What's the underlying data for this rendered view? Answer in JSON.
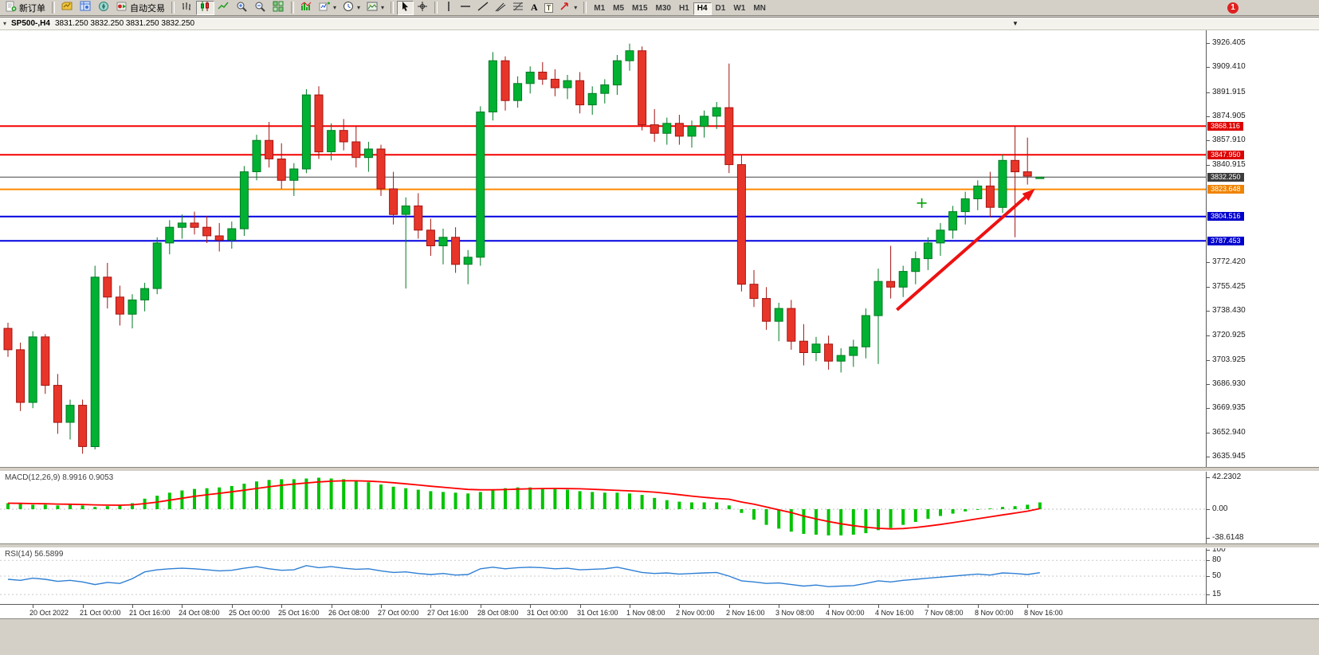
{
  "toolbar": {
    "new_order_label": "新订单",
    "auto_trading_label": "自动交易",
    "text_tool_label": "A",
    "label_tool_label": "T",
    "timeframes": [
      "M1",
      "M5",
      "M15",
      "M30",
      "H1",
      "H4",
      "D1",
      "W1",
      "MN"
    ],
    "active_timeframe": "H4",
    "notification_badge": "1",
    "icons": [
      "new-order",
      "chart-profiles",
      "market-watch",
      "navigator",
      "auto-trading",
      "bar-chart",
      "candlestick-chart",
      "line-chart",
      "zoom-in",
      "zoom-out",
      "tile-windows",
      "indicators",
      "add-indicator",
      "period",
      "template",
      "cursor",
      "crosshair",
      "vertical-line",
      "horizontal-line",
      "trendline",
      "equidistant-channel",
      "fibonacci",
      "text",
      "text-label",
      "arrows"
    ]
  },
  "chart_header": {
    "title": "SP500-,H4",
    "ohlc": "3831.250 3832.250 3831.250 3832.250"
  },
  "panels": {
    "macd_title": "MACD(12,26,9)",
    "macd_values": "8.9916 0.9053",
    "rsi_title": "RSI(14)",
    "rsi_value": "56.5899",
    "macd_axis": [
      {
        "text": "42.2302",
        "value": 42.2302
      },
      {
        "text": "0.00",
        "value": 0
      },
      {
        "text": "-38.6148",
        "value": -38.6148
      }
    ],
    "rsi_axis": [
      {
        "text": "100",
        "value": 100
      },
      {
        "text": "80",
        "value": 80
      },
      {
        "text": "50",
        "value": 50
      },
      {
        "text": "15",
        "value": 15
      }
    ]
  },
  "price_axis": {
    "labels": [
      3926.405,
      3909.41,
      3891.915,
      3874.905,
      3857.91,
      3840.915,
      3772.42,
      3755.425,
      3738.43,
      3720.925,
      3703.925,
      3686.93,
      3669.935,
      3652.94,
      3635.945
    ]
  },
  "chart_data": {
    "type": "candlestick",
    "symbol": "SP500-",
    "timeframe": "H4",
    "current_price": 3832.25,
    "colors": {
      "up": "#00b132",
      "down": "#e8352a",
      "macd_hist": "#00c400",
      "macd_signal": "#ff0000",
      "rsi_line": "#2e7fd4",
      "arrow": "#ee1111"
    },
    "x_labels": [
      "20 Oct 2022",
      "21 Oct 00:00",
      "21 Oct 16:00",
      "24 Oct 08:00",
      "25 Oct 00:00",
      "25 Oct 16:00",
      "26 Oct 08:00",
      "27 Oct 00:00",
      "27 Oct 16:00",
      "28 Oct 08:00",
      "31 Oct 00:00",
      "31 Oct 16:00",
      "1 Nov 08:00",
      "2 Nov 00:00",
      "2 Nov 16:00",
      "3 Nov 08:00",
      "4 Nov 00:00",
      "4 Nov 16:00",
      "7 Nov 08:00",
      "8 Nov 00:00",
      "8 Nov 16:00"
    ],
    "candles_ohlc": [
      [
        3726,
        3730,
        3706,
        3711
      ],
      [
        3711,
        3716,
        3668,
        3674
      ],
      [
        3674,
        3724,
        3670,
        3720
      ],
      [
        3720,
        3722,
        3680,
        3686
      ],
      [
        3686,
        3694,
        3652,
        3660
      ],
      [
        3660,
        3676,
        3648,
        3672
      ],
      [
        3672,
        3676,
        3638,
        3643
      ],
      [
        3643,
        3770,
        3641,
        3762
      ],
      [
        3762,
        3772,
        3740,
        3748
      ],
      [
        3748,
        3756,
        3728,
        3736
      ],
      [
        3736,
        3750,
        3726,
        3746
      ],
      [
        3746,
        3758,
        3738,
        3754
      ],
      [
        3754,
        3790,
        3750,
        3786
      ],
      [
        3786,
        3802,
        3778,
        3797
      ],
      [
        3797,
        3806,
        3789,
        3800
      ],
      [
        3800,
        3808,
        3792,
        3797
      ],
      [
        3797,
        3805,
        3786,
        3791
      ],
      [
        3791,
        3800,
        3780,
        3788
      ],
      [
        3788,
        3801,
        3782,
        3796
      ],
      [
        3796,
        3840,
        3791,
        3836
      ],
      [
        3836,
        3862,
        3830,
        3858
      ],
      [
        3858,
        3871,
        3839,
        3845
      ],
      [
        3845,
        3856,
        3824,
        3830
      ],
      [
        3830,
        3842,
        3819,
        3838
      ],
      [
        3838,
        3894,
        3835,
        3890
      ],
      [
        3890,
        3896,
        3845,
        3850
      ],
      [
        3850,
        3870,
        3844,
        3865
      ],
      [
        3865,
        3873,
        3851,
        3857
      ],
      [
        3857,
        3868,
        3839,
        3846
      ],
      [
        3846,
        3857,
        3836,
        3852
      ],
      [
        3852,
        3855,
        3819,
        3824
      ],
      [
        3824,
        3836,
        3799,
        3806
      ],
      [
        3806,
        3818,
        3754,
        3812
      ],
      [
        3812,
        3821,
        3789,
        3795
      ],
      [
        3795,
        3803,
        3777,
        3784
      ],
      [
        3784,
        3796,
        3771,
        3790
      ],
      [
        3790,
        3797,
        3765,
        3771
      ],
      [
        3771,
        3781,
        3757,
        3776
      ],
      [
        3776,
        3882,
        3770,
        3878
      ],
      [
        3878,
        3920,
        3872,
        3914
      ],
      [
        3914,
        3917,
        3879,
        3886
      ],
      [
        3886,
        3903,
        3881,
        3898
      ],
      [
        3898,
        3910,
        3891,
        3906
      ],
      [
        3906,
        3913,
        3897,
        3901
      ],
      [
        3901,
        3908,
        3889,
        3895
      ],
      [
        3895,
        3904,
        3887,
        3900
      ],
      [
        3900,
        3906,
        3877,
        3883
      ],
      [
        3883,
        3896,
        3876,
        3891
      ],
      [
        3891,
        3901,
        3884,
        3897
      ],
      [
        3897,
        3918,
        3890,
        3914
      ],
      [
        3914,
        3926,
        3907,
        3921
      ],
      [
        3921,
        3924,
        3865,
        3869
      ],
      [
        3869,
        3880,
        3857,
        3863
      ],
      [
        3863,
        3874,
        3855,
        3870
      ],
      [
        3870,
        3876,
        3855,
        3861
      ],
      [
        3861,
        3872,
        3853,
        3868
      ],
      [
        3868,
        3879,
        3860,
        3875
      ],
      [
        3875,
        3885,
        3866,
        3881
      ],
      [
        3881,
        3912,
        3835,
        3841
      ],
      [
        3841,
        3848,
        3752,
        3757
      ],
      [
        3757,
        3767,
        3741,
        3747
      ],
      [
        3747,
        3755,
        3725,
        3731
      ],
      [
        3731,
        3744,
        3717,
        3740
      ],
      [
        3740,
        3746,
        3711,
        3717
      ],
      [
        3717,
        3729,
        3700,
        3709
      ],
      [
        3709,
        3720,
        3703,
        3715
      ],
      [
        3715,
        3721,
        3697,
        3703
      ],
      [
        3703,
        3712,
        3695,
        3707
      ],
      [
        3707,
        3718,
        3699,
        3713
      ],
      [
        3713,
        3740,
        3705,
        3735
      ],
      [
        3735,
        3768,
        3701,
        3759
      ],
      [
        3759,
        3784,
        3747,
        3755
      ],
      [
        3755,
        3770,
        3748,
        3766
      ],
      [
        3766,
        3780,
        3757,
        3775
      ],
      [
        3775,
        3790,
        3767,
        3786
      ],
      [
        3786,
        3800,
        3777,
        3795
      ],
      [
        3795,
        3812,
        3789,
        3808
      ],
      [
        3808,
        3822,
        3799,
        3817
      ],
      [
        3817,
        3830,
        3809,
        3826
      ],
      [
        3826,
        3836,
        3804,
        3811
      ],
      [
        3811,
        3848,
        3807,
        3844
      ],
      [
        3844,
        3868,
        3790,
        3836
      ],
      [
        3836,
        3860,
        3827,
        3833
      ],
      [
        3831.25,
        3832.25,
        3831.25,
        3832.25
      ]
    ],
    "hlines": [
      {
        "price": 3868.116,
        "label": "3868.116",
        "color": "#f40000",
        "label_bg": "#dd0000",
        "width": 2,
        "current": false
      },
      {
        "price": 3847.95,
        "label": "3847.950",
        "color": "#f40000",
        "label_bg": "#dd0000",
        "width": 2,
        "current": false
      },
      {
        "price": 3832.25,
        "label": "3832.250",
        "color": "#454545",
        "label_bg": "#3c3c3c",
        "width": 1,
        "current": true
      },
      {
        "price": 3823.648,
        "label": "3823.648",
        "color": "#ff8a00",
        "label_bg": "#f08300",
        "width": 2,
        "current": false
      },
      {
        "price": 3804.516,
        "label": "3804.516",
        "color": "#0000e0",
        "label_bg": "#0000cc",
        "width": 2,
        "current": false
      },
      {
        "price": 3787.453,
        "label": "3787.453",
        "color": "#0000e0",
        "label_bg": "#0000cc",
        "width": 2,
        "current": false
      }
    ],
    "arrow": {
      "from_bar": 71.5,
      "from_price": 3739,
      "to_bar": 82.6,
      "to_price": 3824
    },
    "marker": {
      "bar": 73.5,
      "price": 3814,
      "color": "#00a000"
    },
    "indicators": {
      "macd": {
        "histogram": [
          8,
          7,
          6,
          6,
          5,
          6,
          5,
          3,
          4,
          5,
          8,
          14,
          18,
          22,
          25,
          27,
          28,
          29,
          31,
          34,
          37,
          39,
          40,
          40,
          41,
          42,
          41,
          40,
          38,
          36,
          33,
          30,
          28,
          26,
          24,
          23,
          22,
          21,
          23,
          26,
          28,
          29,
          29,
          28,
          27,
          26,
          24,
          23,
          22,
          22,
          21,
          19,
          15,
          12,
          10,
          9,
          9,
          9,
          5,
          -5,
          -14,
          -21,
          -26,
          -30,
          -33,
          -34,
          -35,
          -35,
          -34,
          -32,
          -28,
          -25,
          -21,
          -17,
          -13,
          -9,
          -6,
          -3,
          -1,
          1,
          3,
          4,
          6,
          9
        ],
        "signal": [
          8.0,
          7.8,
          7.5,
          7.2,
          6.8,
          6.6,
          6.3,
          5.7,
          5.4,
          5.3,
          5.8,
          7.4,
          9.5,
          12.0,
          14.6,
          17.1,
          19.3,
          21.2,
          23.2,
          25.3,
          27.7,
          29.9,
          31.9,
          33.5,
          35.0,
          36.4,
          37.3,
          37.9,
          37.9,
          37.5,
          36.6,
          35.3,
          33.8,
          32.3,
          30.6,
          29.3,
          27.8,
          26.4,
          25.8,
          25.8,
          26.2,
          26.8,
          27.2,
          27.6,
          27.7,
          27.5,
          27.2,
          26.6,
          25.9,
          25.1,
          24.5,
          23.8,
          22.8,
          21.2,
          19.4,
          17.5,
          15.8,
          14.4,
          13.3,
          9.6,
          6.7,
          3.0,
          -1.0,
          -4.6,
          -9.2,
          -13.0,
          -16.5,
          -19.5,
          -22.0,
          -24.0,
          -25.5,
          -26.3,
          -25.8,
          -24.5,
          -22.6,
          -20.4,
          -18.0,
          -15.4,
          -12.8,
          -10.2,
          -7.7,
          -5.2,
          -2.7,
          0.9
        ]
      },
      "rsi": {
        "values": [
          44,
          42,
          46,
          44,
          40,
          42,
          39,
          34,
          38,
          36,
          45,
          58,
          62,
          64,
          65,
          64,
          62,
          60,
          61,
          65,
          68,
          64,
          61,
          62,
          70,
          66,
          68,
          65,
          63,
          64,
          60,
          57,
          58,
          55,
          53,
          55,
          52,
          53,
          64,
          67,
          64,
          66,
          67,
          66,
          64,
          65,
          62,
          63,
          64,
          67,
          62,
          57,
          55,
          56,
          54,
          55,
          56,
          57,
          50,
          41,
          39,
          36,
          37,
          34,
          31,
          33,
          30,
          31,
          32,
          36,
          41,
          39,
          42,
          44,
          46,
          48,
          50,
          52,
          54,
          52,
          56,
          55,
          53,
          56.59
        ]
      }
    }
  }
}
